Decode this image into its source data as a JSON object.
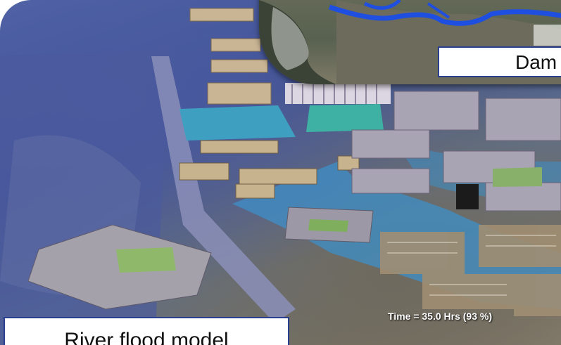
{
  "inset_label": "Dam",
  "time_readout": "Time = 35.0 Hrs (93 %)",
  "main_label": "River flood model",
  "colors": {
    "flood_water": "#3d8fc8",
    "label_border": "#2a3f8f",
    "river_blue_inset": "#1f4fe0"
  }
}
